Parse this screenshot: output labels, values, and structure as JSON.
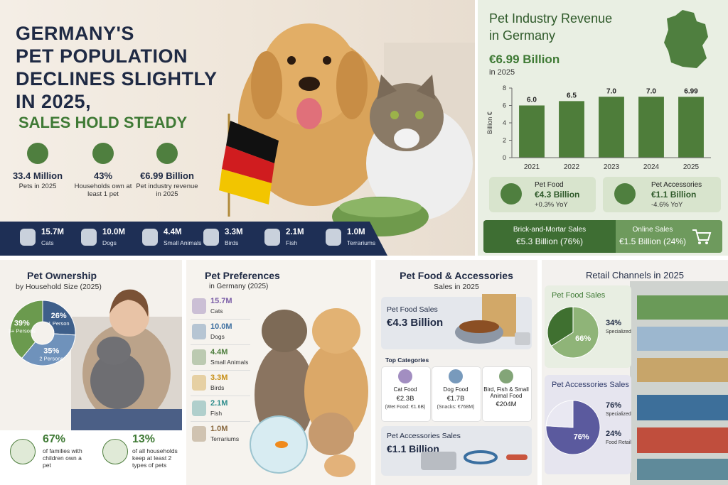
{
  "hero": {
    "title": [
      "GERMANY'S",
      "PET POPULATION",
      "DECLINES SLIGHTLY",
      "IN 2025,"
    ],
    "subtitle": "SALES HOLD STEADY",
    "stats": [
      {
        "value": "33.4 Million",
        "label": "Pets in 2025"
      },
      {
        "value": "43%",
        "label": "Households own at least 1 pet"
      },
      {
        "value": "€6.99 Billion",
        "label": "Pet industry revenue in 2025"
      }
    ]
  },
  "pet_counts": [
    {
      "value": "15.7M",
      "label": "Cats"
    },
    {
      "value": "10.0M",
      "label": "Dogs"
    },
    {
      "value": "4.4M",
      "label": "Small Animals"
    },
    {
      "value": "3.3M",
      "label": "Birds"
    },
    {
      "value": "2.1M",
      "label": "Fish"
    },
    {
      "value": "1.0M",
      "label": "Terrariums"
    }
  ],
  "revenue": {
    "title": "Pet Industry Revenue",
    "subtitle": "in Germany",
    "headline": "€6.99 Billion",
    "headline_note": "in 2025",
    "chart": {
      "type": "bar",
      "y_label": "Billion €",
      "categories": [
        "2021",
        "2022",
        "2023",
        "2024",
        "2025"
      ],
      "values": [
        6.0,
        6.5,
        7.0,
        7.0,
        6.99
      ],
      "value_labels": [
        "6.0",
        "6.5",
        "7.0",
        "7.0",
        "6.99"
      ],
      "ylim": [
        0,
        8
      ],
      "yticks": [
        0,
        2,
        4,
        6,
        8
      ],
      "color": "#4e7d3a"
    },
    "segments": [
      {
        "title": "Pet Food",
        "value": "€4.3 Billion",
        "change": "+0.3% YoY"
      },
      {
        "title": "Pet Accessories",
        "value": "€1.1 Billion",
        "change": "-4.6% YoY"
      }
    ],
    "channels": [
      {
        "title": "Brick-and-Mortar Sales",
        "value": "€5.3 Billion (76%)"
      },
      {
        "title": "Online Sales",
        "value": "€1.5 Billion (24%)"
      }
    ]
  },
  "ownership": {
    "title": "Pet Ownership",
    "subtitle": "by Household Size (2025)",
    "chart": {
      "type": "donut",
      "categories": [
        "1 Person",
        "2 Persons",
        "3+ Persons"
      ],
      "values": [
        26,
        35,
        39
      ],
      "value_labels": [
        "26%",
        "35%",
        "39%"
      ],
      "colors": [
        "#3e5f8a",
        "#6f92bb",
        "#6b9a4e"
      ]
    },
    "facts": [
      {
        "value": "67%",
        "label": "of families with children own a pet"
      },
      {
        "value": "13%",
        "label": "of all households keep at least 2 types of pets"
      }
    ]
  },
  "preferences": {
    "title": "Pet Preferences",
    "subtitle": "in Germany (2025)",
    "items": [
      {
        "value": "15.7M",
        "label": "Cats"
      },
      {
        "value": "10.0M",
        "label": "Dogs"
      },
      {
        "value": "4.4M",
        "label": "Small Animals"
      },
      {
        "value": "3.3M",
        "label": "Birds"
      },
      {
        "value": "2.1M",
        "label": "Fish"
      },
      {
        "value": "1.0M",
        "label": "Terrariums"
      }
    ]
  },
  "food_accessories": {
    "title": "Pet Food & Accessories",
    "subtitle": "Sales in 2025",
    "food": {
      "label": "Pet Food Sales",
      "value": "€4.3 Billion"
    },
    "categories_title": "Top Categories",
    "categories": [
      {
        "name": "Cat Food",
        "value": "€2.3B",
        "note": "(Wet Food: €1.6B)"
      },
      {
        "name": "Dog Food",
        "value": "€1.7B",
        "note": "(Snacks: €768M)"
      },
      {
        "name": "Bird, Fish & Small Animal Food",
        "value": "€204M"
      }
    ],
    "accessories": {
      "label": "Pet Accessories Sales",
      "value": "€1.1 Billion"
    }
  },
  "retail": {
    "title": "Retail Channels in 2025",
    "charts": [
      {
        "type": "pie",
        "title": "Pet Food Sales",
        "categories": [
          null,
          "Specialized Pet Stores"
        ],
        "values": [
          66,
          34
        ],
        "value_labels": [
          "66%",
          "34%"
        ],
        "colors": [
          "#8fb478",
          "#3f7030"
        ]
      },
      {
        "type": "pie",
        "title": "Pet Accessories Sales",
        "categories": [
          "Specialized Pet Stores",
          "Food Retail"
        ],
        "values": [
          76,
          24
        ],
        "value_labels": [
          "76%",
          "24%"
        ],
        "colors": [
          "#5b5a9e",
          "#e9e8f2"
        ]
      }
    ]
  }
}
